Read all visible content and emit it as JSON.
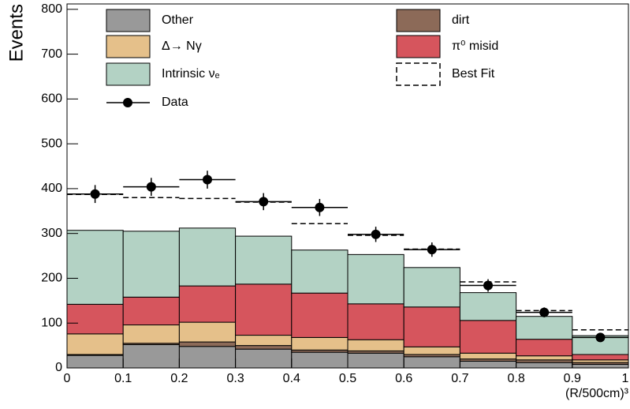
{
  "chart_data": {
    "type": "stacked-histogram",
    "x_label": "(R/500cm)³",
    "y_label": "Events",
    "bins": [
      0,
      0.1,
      0.2,
      0.3,
      0.4,
      0.5,
      0.6,
      0.7,
      0.8,
      0.9,
      1
    ],
    "xlim": [
      0,
      1
    ],
    "ylim": [
      0,
      812
    ],
    "xticks": [
      0,
      0.1,
      0.2,
      0.3,
      0.4,
      0.5,
      0.6,
      0.7,
      0.8,
      0.9,
      1
    ],
    "yticks": [
      0,
      100,
      200,
      300,
      400,
      500,
      600,
      700,
      800
    ],
    "series": [
      {
        "name": "Other",
        "color": "#999999",
        "values": [
          28,
          52,
          48,
          42,
          35,
          33,
          25,
          15,
          12,
          8
        ]
      },
      {
        "name": "dirt",
        "color": "#8c6a58",
        "values": [
          2,
          3,
          10,
          8,
          5,
          5,
          5,
          5,
          6,
          4
        ]
      },
      {
        "name": "Δ→ Nγ",
        "color": "#e5c08a",
        "values": [
          46,
          41,
          44,
          23,
          28,
          25,
          17,
          13,
          9,
          6
        ]
      },
      {
        "name": "π⁰ misid",
        "color": "#d6555d",
        "values": [
          66,
          62,
          81,
          114,
          99,
          80,
          89,
          73,
          37,
          12
        ]
      },
      {
        "name": "Intrinsic νₑ",
        "color": "#b3d2c4",
        "values": [
          165,
          147,
          129,
          107,
          96,
          110,
          88,
          62,
          51,
          42
        ]
      }
    ],
    "best_fit": {
      "name": "Best Fit",
      "values": [
        387,
        380,
        378,
        370,
        322,
        296,
        265,
        192,
        128,
        85
      ]
    },
    "data": {
      "name": "Data",
      "x": [
        0.05,
        0.15,
        0.25,
        0.35,
        0.45,
        0.55,
        0.65,
        0.75,
        0.85,
        0.95
      ],
      "values": [
        388,
        404,
        420,
        371,
        358,
        298,
        264,
        184,
        124,
        68
      ],
      "errors": [
        20,
        20,
        20,
        19,
        19,
        17,
        16,
        14,
        11,
        8
      ]
    }
  }
}
